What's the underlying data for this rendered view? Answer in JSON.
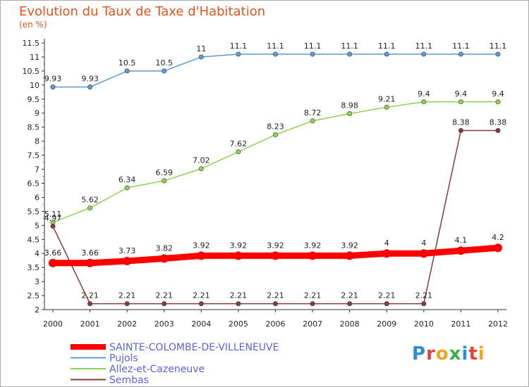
{
  "header": {
    "title": "Evolution du Taux de Taxe d'Habitation",
    "unit": "(en %)"
  },
  "logo": {
    "text": "Proxiti",
    "colors": [
      "#2a8fd4",
      "#e0443a",
      "#f2a51f",
      "#3fae49",
      "#2a8fd4",
      "#e0443a",
      "#f2a51f"
    ]
  },
  "chart_data": {
    "type": "line",
    "title": "Evolution du Taux de Taxe d'Habitation",
    "ylabel": "(en %)",
    "xlabel": "",
    "x": [
      "2000",
      "2001",
      "2002",
      "2003",
      "2004",
      "2005",
      "2006",
      "2007",
      "2008",
      "2009",
      "2010",
      "2011",
      "2012"
    ],
    "ylim": [
      2,
      11.5
    ],
    "yticks": [
      "2",
      "2.5",
      "3",
      "3.5",
      "4",
      "4.5",
      "5",
      "5.5",
      "6",
      "6.5",
      "7",
      "7.5",
      "8",
      "8.5",
      "9",
      "9.5",
      "10",
      "10.5",
      "11",
      "11.5"
    ],
    "grid": false,
    "legend_position": "bottom-left",
    "series": [
      {
        "name": "SAINTE-COLOMBE-DE-VILLENEUVE",
        "color": "#ff0000",
        "values": [
          3.66,
          3.66,
          3.73,
          3.82,
          3.92,
          3.92,
          3.92,
          3.92,
          3.92,
          4,
          4,
          4.1,
          4.2
        ],
        "labels": [
          "3.66",
          "3.66",
          "3.73",
          "3.82",
          "3.92",
          "3.92",
          "3.92",
          "3.92",
          "3.92",
          "4",
          "4",
          "4.1",
          "4.2"
        ]
      },
      {
        "name": "Pujols",
        "color": "#5b9bd5",
        "values": [
          9.93,
          9.93,
          10.5,
          10.5,
          11,
          11.1,
          11.1,
          11.1,
          11.1,
          11.1,
          11.1,
          11.1,
          11.1
        ],
        "labels": [
          "9.93",
          "9.93",
          "10.5",
          "10.5",
          "11",
          "11.1",
          "11.1",
          "11.1",
          "11.1",
          "11.1",
          "11.1",
          "11.1",
          "11.1"
        ]
      },
      {
        "name": "Allez-et-Cazeneuve",
        "color": "#8fd14f",
        "values": [
          5.11,
          5.62,
          6.34,
          6.59,
          7.02,
          7.62,
          8.23,
          8.72,
          8.98,
          9.21,
          9.4,
          9.4,
          9.4
        ],
        "labels": [
          "5.11",
          "5.62",
          "6.34",
          "6.59",
          "7.02",
          "7.62",
          "8.23",
          "8.72",
          "8.98",
          "9.21",
          "9.4",
          "9.4",
          "9.4"
        ]
      },
      {
        "name": "Sembas",
        "color": "#8b3a3a",
        "values": [
          4.97,
          2.21,
          2.21,
          2.21,
          2.21,
          2.21,
          2.21,
          2.21,
          2.21,
          2.21,
          2.21,
          8.38,
          8.38
        ],
        "labels": [
          "4.97",
          "2.21",
          "2.21",
          "2.21",
          "2.21",
          "2.21",
          "2.21",
          "2.21",
          "2.21",
          "2.21",
          "2.21",
          "8.38",
          "8.38"
        ]
      }
    ]
  }
}
